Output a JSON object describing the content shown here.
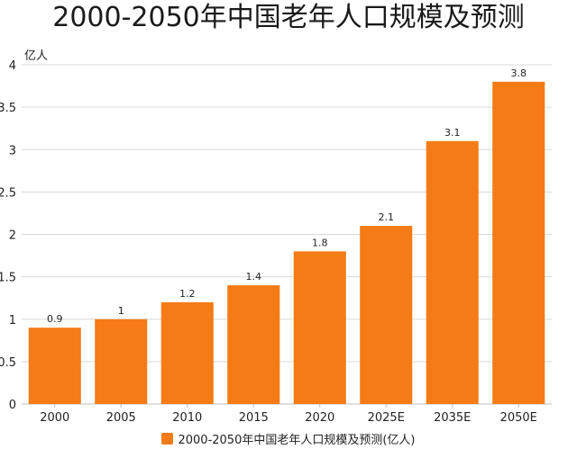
{
  "chart_data": {
    "type": "bar",
    "title": "2000-2050年中国老年人口规模及预测",
    "ylabel": "亿人",
    "xlabel": "",
    "categories": [
      "2000",
      "2005",
      "2010",
      "2015",
      "2020",
      "2025E",
      "2035E",
      "2050E"
    ],
    "series": [
      {
        "name": "2000-2050年中国老年人口规模及预测(亿人)",
        "values": [
          0.9,
          1,
          1.2,
          1.4,
          1.8,
          2.1,
          3.1,
          3.8
        ],
        "color": "#f47b16"
      }
    ],
    "value_labels": [
      "0.9",
      "1",
      "1.2",
      "1.4",
      "1.8",
      "2.1",
      "3.1",
      "3.8"
    ],
    "ylim": [
      0,
      4
    ],
    "yticks": [
      0,
      0.5,
      1,
      1.5,
      2,
      2.5,
      3,
      3.5,
      4
    ],
    "ytick_labels": [
      "0",
      "0.5",
      "1",
      "1.5",
      "2",
      "2.5",
      "3",
      "3.5",
      "4"
    ],
    "grid": true,
    "legend_position": "bottom"
  }
}
